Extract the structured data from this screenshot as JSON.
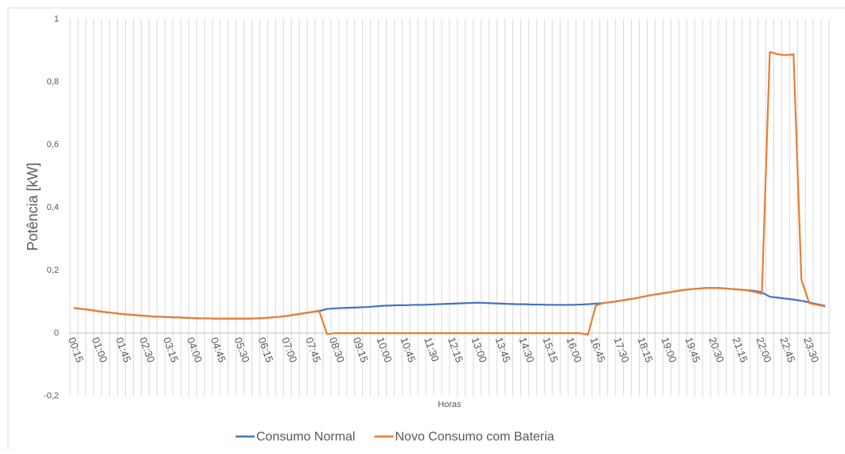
{
  "chart_data": {
    "type": "line",
    "y_label": "Potência [kW]",
    "x_label": "Horas",
    "categories": [
      "00:15",
      null,
      null,
      "01:00",
      null,
      null,
      "01:45",
      null,
      null,
      "02:30",
      null,
      null,
      "03:15",
      null,
      null,
      "04:00",
      null,
      null,
      "04:45",
      null,
      null,
      "05:30",
      null,
      null,
      "06:15",
      null,
      null,
      "07:00",
      null,
      null,
      "07:45",
      null,
      null,
      "08:30",
      null,
      null,
      "09:15",
      null,
      null,
      "10:00",
      null,
      null,
      "10:45",
      null,
      null,
      "11:30",
      null,
      null,
      "12:15",
      null,
      null,
      "13:00",
      null,
      null,
      "13:45",
      null,
      null,
      "14:30",
      null,
      null,
      "15:15",
      null,
      null,
      "16:00",
      null,
      null,
      "16:45",
      null,
      null,
      "17:30",
      null,
      null,
      "18:15",
      null,
      null,
      "19:00",
      null,
      null,
      "19:45",
      null,
      null,
      "20:30",
      null,
      null,
      "21:15",
      null,
      null,
      "22:00",
      null,
      null,
      "22:45",
      null,
      null,
      "23:30",
      null,
      null
    ],
    "series": [
      {
        "name": "Consumo Normal",
        "color": "#4472c4",
        "values": [
          0.08,
          0.077,
          0.074,
          0.07,
          0.067,
          0.064,
          0.061,
          0.059,
          0.057,
          0.055,
          0.053,
          0.052,
          0.051,
          0.05,
          0.049,
          0.048,
          0.047,
          0.047,
          0.046,
          0.046,
          0.046,
          0.046,
          0.046,
          0.047,
          0.048,
          0.05,
          0.052,
          0.055,
          0.059,
          0.063,
          0.067,
          0.07,
          0.077,
          0.079,
          0.08,
          0.081,
          0.082,
          0.083,
          0.085,
          0.087,
          0.088,
          0.089,
          0.089,
          0.09,
          0.09,
          0.091,
          0.092,
          0.093,
          0.094,
          0.095,
          0.096,
          0.097,
          0.096,
          0.095,
          0.094,
          0.093,
          0.092,
          0.092,
          0.091,
          0.091,
          0.09,
          0.09,
          0.09,
          0.09,
          0.091,
          0.092,
          0.094,
          0.096,
          0.099,
          0.103,
          0.107,
          0.111,
          0.116,
          0.121,
          0.125,
          0.129,
          0.133,
          0.137,
          0.14,
          0.142,
          0.144,
          0.144,
          0.143,
          0.141,
          0.139,
          0.137,
          0.135,
          0.13,
          0.116,
          0.113,
          0.11,
          0.107,
          0.103,
          0.098,
          0.092,
          0.087
        ]
      },
      {
        "name": "Novo Consumo com Bateria",
        "color": "#ed7d31",
        "values": [
          0.08,
          0.077,
          0.074,
          0.07,
          0.067,
          0.064,
          0.061,
          0.059,
          0.057,
          0.055,
          0.053,
          0.052,
          0.051,
          0.05,
          0.049,
          0.048,
          0.047,
          0.047,
          0.046,
          0.046,
          0.046,
          0.046,
          0.046,
          0.047,
          0.048,
          0.05,
          0.052,
          0.055,
          0.059,
          0.063,
          0.067,
          0.072,
          -0.003,
          0,
          0,
          0,
          0,
          0,
          0,
          0,
          0,
          0,
          0,
          0,
          0,
          0,
          0,
          0,
          0,
          0,
          0,
          0,
          0,
          0,
          0,
          0,
          0,
          0,
          0,
          0,
          0,
          0,
          0,
          0,
          0,
          -0.005,
          0.088,
          0.096,
          0.099,
          0.103,
          0.107,
          0.111,
          0.116,
          0.121,
          0.125,
          0.129,
          0.133,
          0.137,
          0.14,
          0.142,
          0.144,
          0.144,
          0.143,
          0.141,
          0.139,
          0.137,
          0.132,
          0.125,
          0.895,
          0.888,
          0.885,
          0.888,
          0.17,
          0.095,
          0.09,
          0.085
        ]
      }
    ],
    "ylim": [
      -0.2,
      1
    ],
    "yticks": [
      {
        "value": -0.2,
        "label": "-0,2"
      },
      0,
      {
        "value": 0.2,
        "label": "0,2"
      },
      {
        "value": 0.4,
        "label": "0,4"
      },
      {
        "value": 0.6,
        "label": "0,6"
      },
      {
        "value": 0.8,
        "label": "0,8"
      },
      1
    ],
    "legend": "bottom"
  }
}
